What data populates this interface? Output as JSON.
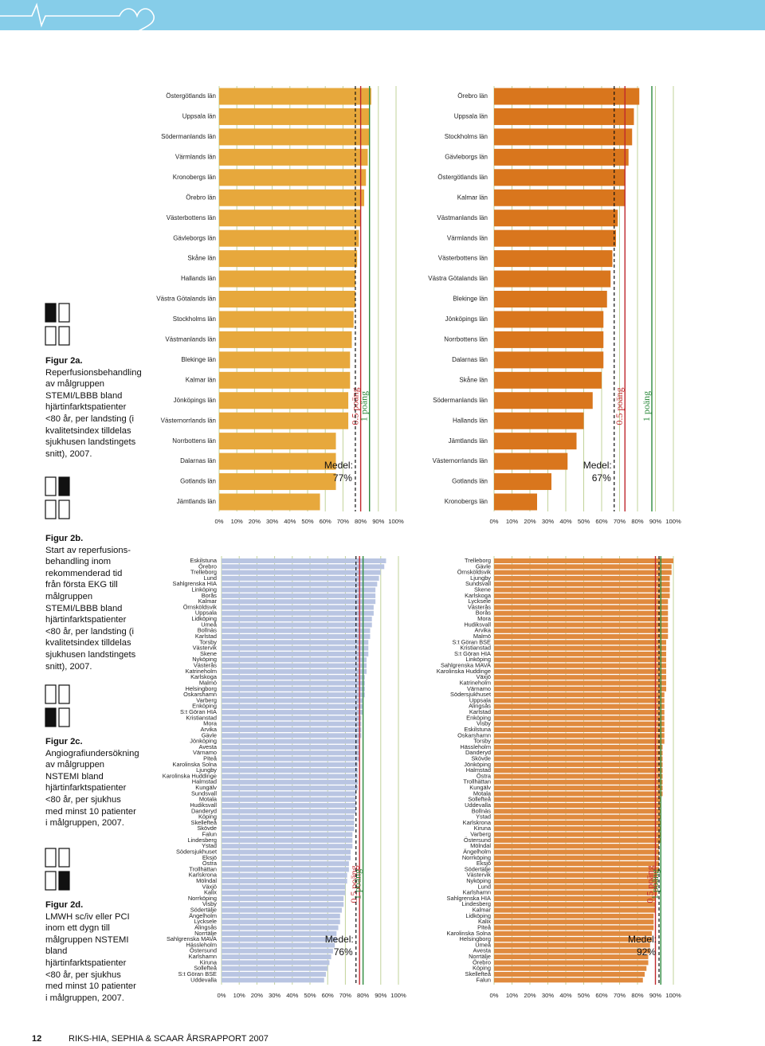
{
  "chart_data": [
    {
      "type": "bar",
      "orientation": "horizontal",
      "color": "#e7a83c",
      "categories": [
        "Östergötlands län",
        "Uppsala län",
        "Södermanlands län",
        "Värmlands län",
        "Kronobergs län",
        "Örebro län",
        "Västerbottens län",
        "Gävleborgs län",
        "Skåne län",
        "Hallands län",
        "Västra Götalands län",
        "Stockholms län",
        "Västmanlands län",
        "Blekinge län",
        "Kalmar län",
        "Jönköpings län",
        "Västernorrlands län",
        "Norrbottens län",
        "Dalarnas län",
        "Gotlands län",
        "Jämtlands län"
      ],
      "values": [
        86,
        85,
        85,
        84,
        83,
        82,
        80,
        79,
        78,
        77,
        77,
        76,
        75,
        74,
        74,
        73,
        73,
        66,
        66,
        66,
        57
      ],
      "xlim": [
        0,
        100
      ],
      "xticks": [
        {
          "value": 0,
          "label": "0%"
        },
        {
          "value": 10,
          "label": "10%"
        },
        {
          "value": 20,
          "label": "20%"
        },
        {
          "value": 30,
          "label": "30%"
        },
        {
          "value": 40,
          "label": "40%"
        },
        {
          "value": 50,
          "label": "50%"
        },
        {
          "value": 60,
          "label": "60%"
        },
        {
          "value": 70,
          "label": "70%"
        },
        {
          "value": 80,
          "label": "80%"
        },
        {
          "value": 90,
          "label": "90%"
        },
        {
          "value": 100,
          "label": "100%"
        }
      ],
      "grid": true,
      "grid_color": "#c2d39a",
      "mean": 77,
      "mean_text": "Medel:",
      "mean_label": "77%",
      "reference_lines": [
        {
          "label": "0.5 poäng",
          "value": 80,
          "color": "#c0282d"
        },
        {
          "label": "1 poäng",
          "value": 85,
          "color": "#2e8b3e"
        }
      ]
    },
    {
      "type": "bar",
      "orientation": "horizontal",
      "color": "#d9761d",
      "categories": [
        "Örebro län",
        "Uppsala län",
        "Stockholms län",
        "Gävleborgs län",
        "Östergötlands län",
        "Kalmar län",
        "Västmanlands län",
        "Värmlands län",
        "Västerbottens län",
        "Västra Götalands län",
        "Blekinge län",
        "Jönköpings län",
        "Norrbottens län",
        "Dalarnas län",
        "Skåne län",
        "Södermanlands län",
        "Hallands län",
        "Jämtlands län",
        "Västernorrlands län",
        "Gotlands län",
        "Kronobergs län"
      ],
      "values": [
        81,
        78,
        77,
        75,
        73,
        73,
        69,
        68,
        66,
        65,
        63,
        61,
        61,
        61,
        60,
        55,
        50,
        46,
        41,
        32,
        24
      ],
      "xlim": [
        0,
        100
      ],
      "xticks": [
        {
          "value": 0,
          "label": "0%"
        },
        {
          "value": 10,
          "label": "10%"
        },
        {
          "value": 20,
          "label": "20%"
        },
        {
          "value": 30,
          "label": "30%"
        },
        {
          "value": 40,
          "label": "40%"
        },
        {
          "value": 50,
          "label": "50%"
        },
        {
          "value": 60,
          "label": "60%"
        },
        {
          "value": 70,
          "label": "70%"
        },
        {
          "value": 80,
          "label": "80%"
        },
        {
          "value": 90,
          "label": "90%"
        },
        {
          "value": 100,
          "label": "100%"
        }
      ],
      "grid": true,
      "grid_color": "#c2d39a",
      "mean": 67,
      "mean_text": "Medel:",
      "mean_label": "67%",
      "reference_lines": [
        {
          "label": "0.5 poäng",
          "value": 73,
          "color": "#c0282d"
        },
        {
          "label": "1 poäng",
          "value": 88,
          "color": "#2e8b3e"
        }
      ]
    },
    {
      "type": "bar",
      "orientation": "horizontal",
      "color": "#b9c5e2",
      "categories": [
        "Eskilstuna",
        "Örebro",
        "Trelleborg",
        "Lund",
        "Sahlgrenska HIA",
        "Linköping",
        "Borås",
        "Kalmar",
        "Örnsköldsvik",
        "Uppsala",
        "Lidköping",
        "Umeå",
        "Bollnäs",
        "Karlstad",
        "Torsby",
        "Västervik",
        "Skene",
        "Nyköping",
        "Västerås",
        "Katrineholm",
        "Karlskoga",
        "Malmö",
        "Helsingborg",
        "Oskarshamn",
        "Varberg",
        "Enköping",
        "S:t Göran HIA",
        "Kristianstad",
        "Mora",
        "Arvika",
        "Gävle",
        "Jönköping",
        "Avesta",
        "Värnamo",
        "Piteå",
        "Karolinska Solna",
        "Ljungby",
        "Karolinska Huddinge",
        "Halmstad",
        "Kungälv",
        "Sundsvall",
        "Motala",
        "Hudiksvall",
        "Danderyd",
        "Köping",
        "Skellefteå",
        "Skövde",
        "Falun",
        "Lindesberg",
        "Ystad",
        "Södersjukhuset",
        "Eksjö",
        "Östra",
        "Trollhättan",
        "Karlskrona",
        "Mölndal",
        "Växjö",
        "Kalix",
        "Norrköping",
        "Visby",
        "Södertälje",
        "Ängelholm",
        "Lycksele",
        "Alingsås",
        "Norrtälje",
        "Sahlgrenska MAVA",
        "Hässleholm",
        "Östersund",
        "Karlshamn",
        "Kiruna",
        "Sollefteå",
        "S:t Göran BSE",
        "Uddevalla"
      ],
      "values": [
        93,
        92,
        90,
        89,
        88,
        87,
        87,
        87,
        86,
        86,
        85,
        85,
        84,
        84,
        83,
        83,
        83,
        82,
        82,
        82,
        81,
        81,
        81,
        81,
        80,
        80,
        80,
        79,
        79,
        79,
        79,
        78,
        78,
        78,
        78,
        77,
        77,
        77,
        77,
        77,
        76,
        76,
        76,
        76,
        75,
        75,
        75,
        74,
        74,
        74,
        73,
        73,
        72,
        72,
        71,
        71,
        70,
        70,
        69,
        69,
        68,
        67,
        67,
        66,
        65,
        65,
        64,
        63,
        62,
        61,
        60,
        59,
        58
      ],
      "xlim": [
        0,
        100
      ],
      "xticks": [
        {
          "value": 0,
          "label": "0%"
        },
        {
          "value": 10,
          "label": "10%"
        },
        {
          "value": 20,
          "label": "20%"
        },
        {
          "value": 30,
          "label": "30%"
        },
        {
          "value": 40,
          "label": "40%"
        },
        {
          "value": 50,
          "label": "50%"
        },
        {
          "value": 60,
          "label": "60%"
        },
        {
          "value": 70,
          "label": "70%"
        },
        {
          "value": 80,
          "label": "80%"
        },
        {
          "value": 90,
          "label": "90%"
        },
        {
          "value": 100,
          "label": "100%"
        }
      ],
      "grid": true,
      "grid_color": "#c2d39a",
      "mean": 76,
      "mean_text": "Medel:",
      "mean_label": "76%",
      "reference_lines": [
        {
          "label": "0.5 poäng",
          "value": 78,
          "color": "#c0282d"
        },
        {
          "label": "1 poäng",
          "value": 80,
          "color": "#2e8b3e"
        }
      ]
    },
    {
      "type": "bar",
      "orientation": "horizontal",
      "color": "#e08a3e",
      "categories": [
        "Trelleborg",
        "Gävle",
        "Örnsköldsvik",
        "Ljungby",
        "Sundsvall",
        "Skene",
        "Karlskoga",
        "Lycksele",
        "Västerås",
        "Borås",
        "Mora",
        "Hudiksvall",
        "Arvika",
        "Malmö",
        "S:t Göran BSE",
        "Kristianstad",
        "S:t Göran HIA",
        "Linköping",
        "Sahlgrenska MAVA",
        "Karolinska Huddinge",
        "Växjö",
        "Katrineholm",
        "Värnamo",
        "Södersjukhuset",
        "Uppsala",
        "Alingsås",
        "Karlstad",
        "Enköping",
        "Visby",
        "Eskilstuna",
        "Oskarshamn",
        "Torsby",
        "Hässleholm",
        "Danderyd",
        "Skövde",
        "Jönköping",
        "Halmstad",
        "Östra",
        "Trollhättan",
        "Kungälv",
        "Motala",
        "Sollefteå",
        "Uddevalla",
        "Bollnäs",
        "Ystad",
        "Karlskrona",
        "Kiruna",
        "Varberg",
        "Östersund",
        "Mölndal",
        "Ängelholm",
        "Norrköping",
        "Eksjö",
        "Södertälje",
        "Västervik",
        "Nyköping",
        "Lund",
        "Karlshamn",
        "Sahlgrenska HIA",
        "Lindesberg",
        "Kalmar",
        "Lidköping",
        "Kalix",
        "Piteå",
        "Karolinska Solna",
        "Helsingborg",
        "Umeå",
        "Avesta",
        "Norrtälje",
        "Örebro",
        "Köping",
        "Skellefteå",
        "Falun"
      ],
      "values": [
        100,
        99,
        99,
        98,
        98,
        98,
        98,
        97,
        97,
        97,
        97,
        97,
        97,
        97,
        96,
        96,
        96,
        96,
        96,
        96,
        96,
        96,
        96,
        95,
        95,
        95,
        95,
        95,
        95,
        95,
        95,
        95,
        94,
        94,
        94,
        94,
        94,
        94,
        94,
        94,
        94,
        93,
        93,
        93,
        93,
        93,
        93,
        93,
        93,
        92,
        92,
        92,
        92,
        92,
        91,
        91,
        91,
        91,
        90,
        90,
        90,
        89,
        89,
        89,
        88,
        88,
        87,
        87,
        86,
        86,
        85,
        84,
        83
      ],
      "xlim": [
        0,
        100
      ],
      "xticks": [
        {
          "value": 0,
          "label": "0%"
        },
        {
          "value": 10,
          "label": "10%"
        },
        {
          "value": 20,
          "label": "20%"
        },
        {
          "value": 30,
          "label": "30%"
        },
        {
          "value": 40,
          "label": "40%"
        },
        {
          "value": 50,
          "label": "50%"
        },
        {
          "value": 60,
          "label": "60%"
        },
        {
          "value": 70,
          "label": "70%"
        },
        {
          "value": 80,
          "label": "80%"
        },
        {
          "value": 90,
          "label": "90%"
        },
        {
          "value": 100,
          "label": "100%"
        }
      ],
      "grid": true,
      "grid_color": "#c2d39a",
      "mean": 92,
      "mean_text": "Medel:",
      "mean_label": "92%",
      "reference_lines": [
        {
          "label": "0.5 poäng",
          "value": 90,
          "color": "#c0282d"
        },
        {
          "label": "1 poäng",
          "value": 93,
          "color": "#2e8b3e"
        }
      ]
    }
  ],
  "sidebar": {
    "figures": [
      {
        "title": "Figur 2a.",
        "text": "Reperfusionsbehandling av målgruppen STEMI/LBBB bland hjärtinfarktspatienter <80 år, per landsting (i kvalitetsindex tilldelas sjukhusen landstingets snitt), 2007."
      },
      {
        "title": "Figur 2b.",
        "text": "Start av reperfusions-behandling inom rekommenderad tid från första EKG till målgruppen STEMI/LBBB bland hjärtinfarktspatienter <80 år, per landsting (i kvalitetsindex tilldelas sjukhusen landstingets snitt), 2007."
      },
      {
        "title": "Figur 2c.",
        "text": "Angiografiundersökning av målgruppen NSTEMI bland hjärtinfarktspatienter <80 år, per sjukhus med minst 10 patienter i målgruppen, 2007."
      },
      {
        "title": "Figur 2d.",
        "text": "LMWH sc/iv eller PCI inom ett dygn till målgruppen NSTEMI bland hjärtinfarktspatienter <80 år, per sjukhus med minst 10 patienter i målgruppen, 2007."
      }
    ]
  },
  "footer": {
    "page_number": "12",
    "title": "RIKS-HIA, SEPHIA & SCAAR ÅRSRAPPORT 2007"
  }
}
